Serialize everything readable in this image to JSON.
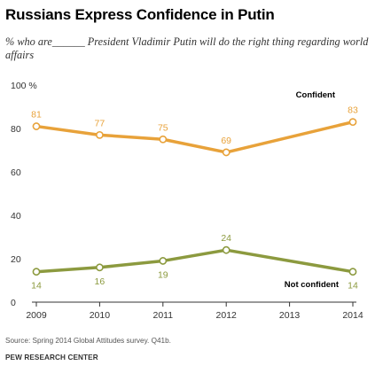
{
  "chart_data": {
    "type": "line",
    "title": "Russians Express Confidence in Putin",
    "subtitle": "% who are______ President Vladimir Putin will do the right thing regarding world affairs",
    "x": [
      "2009",
      "2010",
      "2011",
      "2012",
      "2013",
      "2014"
    ],
    "yticks": [
      "0",
      "20",
      "40",
      "60",
      "80",
      "100 %"
    ],
    "ylim": [
      0,
      100
    ],
    "grid": false,
    "series": [
      {
        "name": "Confident",
        "color": "#E8A23A",
        "points": [
          {
            "x": "2009",
            "y": 81
          },
          {
            "x": "2010",
            "y": 77
          },
          {
            "x": "2011",
            "y": 75
          },
          {
            "x": "2012",
            "y": 69
          },
          {
            "x": "2014",
            "y": 83
          }
        ]
      },
      {
        "name": "Not confident",
        "color": "#8C9A3F",
        "points": [
          {
            "x": "2009",
            "y": 14
          },
          {
            "x": "2010",
            "y": 16
          },
          {
            "x": "2011",
            "y": 19
          },
          {
            "x": "2012",
            "y": 24
          },
          {
            "x": "2014",
            "y": 14
          }
        ]
      }
    ]
  },
  "footer": {
    "source": "Source: Spring 2014 Global Attitudes survey. Q41b.",
    "organization": "PEW RESEARCH CENTER"
  }
}
